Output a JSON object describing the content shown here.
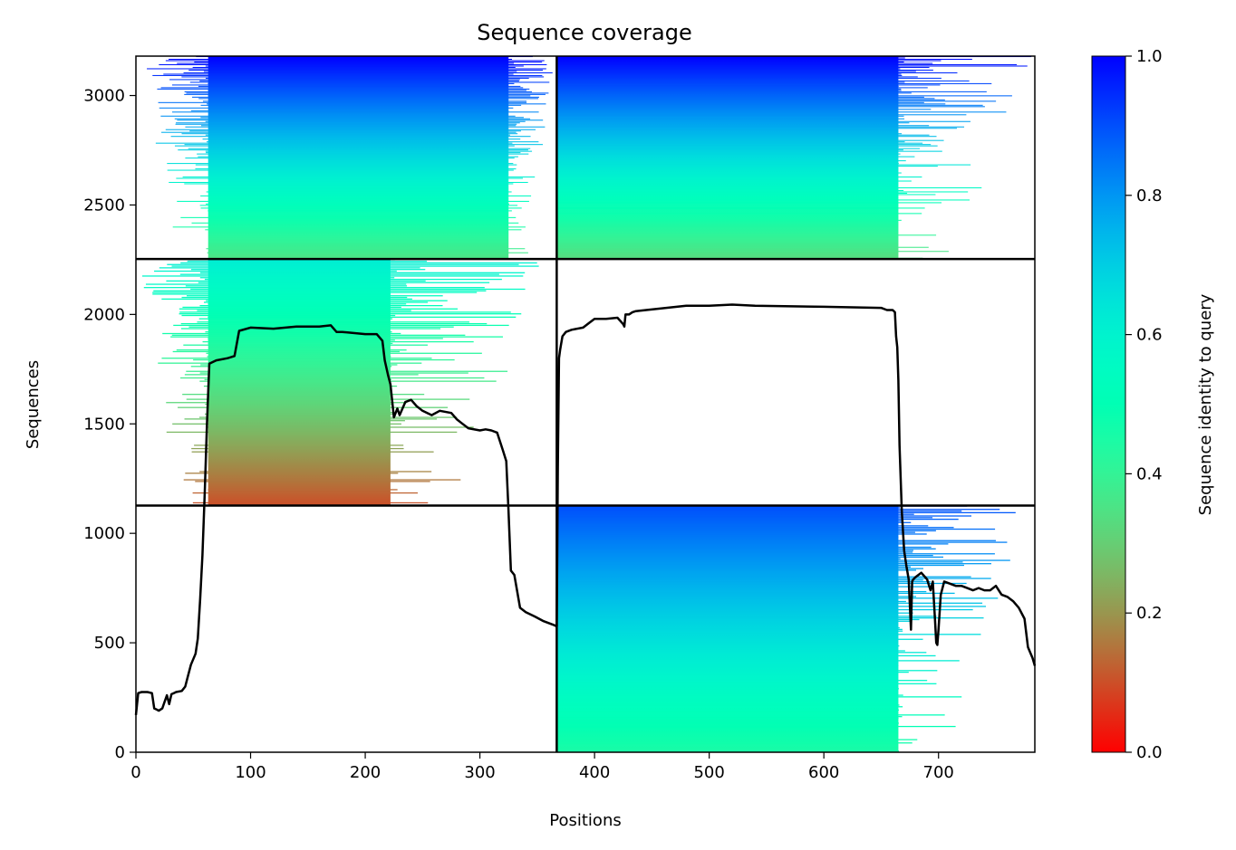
{
  "chart_data": {
    "type": "heatmap",
    "title": "Sequence coverage",
    "xlabel": "Positions",
    "ylabel": "Sequences",
    "xlim": [
      0,
      784
    ],
    "ylim": [
      0,
      3180
    ],
    "x_ticks": [
      0,
      100,
      200,
      300,
      400,
      500,
      600,
      700
    ],
    "y_ticks": [
      0,
      500,
      1000,
      1500,
      2000,
      2500,
      3000
    ],
    "grid": false,
    "colorbar": {
      "label": "Sequence identity to query",
      "colormap": "rainbow_r",
      "range": [
        0,
        1
      ],
      "ticks": [
        0.0,
        0.2,
        0.4,
        0.6,
        0.8,
        1.0
      ],
      "tick_labels": [
        "0.0",
        "0.2",
        "0.4",
        "0.6",
        "0.8",
        "1.0"
      ]
    },
    "chain_boundaries": {
      "positions": [
        367
      ],
      "sequences": [
        1127,
        2253
      ]
    },
    "blocks": [
      {
        "id": "top-left",
        "x_range": [
          0,
          367
        ],
        "y_range": [
          2253,
          3180
        ],
        "identity_top": 1.0,
        "identity_bottom": 0.35,
        "full_start": 63,
        "full_end": 325
      },
      {
        "id": "top-right",
        "x_range": [
          367,
          784
        ],
        "y_range": [
          2253,
          3180
        ],
        "identity_top": 1.0,
        "identity_bottom": 0.33,
        "full_start": 367,
        "full_end": 665
      },
      {
        "id": "middle-left",
        "x_range": [
          0,
          367
        ],
        "y_range": [
          1127,
          2253
        ],
        "identity_top": 0.62,
        "identity_bottom": 0.1,
        "full_start": 63,
        "full_end": 222
      },
      {
        "id": "bottom-right",
        "x_range": [
          367,
          784
        ],
        "y_range": [
          0,
          1127
        ],
        "identity_top": 0.9,
        "identity_bottom": 0.45,
        "full_start": 367,
        "full_end": 665
      }
    ],
    "series": [
      {
        "x": [
          0,
          2,
          5,
          10,
          14,
          16,
          18,
          20,
          23,
          25,
          27,
          29,
          31,
          33,
          35,
          40,
          43,
          45,
          48,
          52,
          54,
          56,
          58,
          60,
          62,
          64,
          70,
          80,
          86,
          90,
          100,
          120,
          140,
          160,
          170,
          175,
          180,
          200,
          210,
          215,
          217,
          220,
          222,
          225,
          228,
          230,
          235,
          240,
          245,
          250,
          258,
          265,
          275,
          280,
          285,
          290,
          300,
          305,
          310,
          315,
          320,
          323,
          325,
          327,
          330,
          335,
          340,
          348,
          355,
          360,
          365,
          367
        ],
        "y": [
          170,
          270,
          275,
          275,
          270,
          200,
          195,
          190,
          200,
          230,
          260,
          220,
          265,
          270,
          275,
          280,
          300,
          340,
          400,
          450,
          520,
          700,
          900,
          1180,
          1500,
          1775,
          1790,
          1800,
          1810,
          1925,
          1940,
          1935,
          1945,
          1945,
          1950,
          1920,
          1920,
          1910,
          1910,
          1880,
          1790,
          1720,
          1680,
          1530,
          1570,
          1540,
          1600,
          1610,
          1580,
          1560,
          1540,
          1560,
          1550,
          1520,
          1500,
          1480,
          1470,
          1475,
          1470,
          1460,
          1380,
          1330,
          1100,
          830,
          810,
          660,
          640,
          620,
          600,
          590,
          580,
          575
        ]
      },
      {
        "x": [
          367,
          368,
          369,
          370,
          372,
          375,
          380,
          390,
          395,
          400,
          410,
          420,
          425,
          426,
          427,
          430,
          433,
          436,
          445,
          480,
          500,
          520,
          540,
          600,
          650,
          655,
          660,
          662,
          663,
          664,
          665,
          666,
          668,
          670,
          672,
          674,
          676,
          677,
          678,
          680,
          685,
          690,
          693,
          695,
          697,
          698,
          699,
          700,
          702,
          705,
          710,
          715,
          720,
          725,
          730,
          735,
          740,
          745,
          750,
          755,
          760,
          765,
          770,
          775,
          778,
          782,
          784
        ],
        "y": [
          575,
          1300,
          1800,
          1840,
          1900,
          1920,
          1930,
          1940,
          1960,
          1980,
          1980,
          1985,
          1955,
          1945,
          2000,
          2000,
          2010,
          2015,
          2020,
          2040,
          2040,
          2045,
          2040,
          2035,
          2030,
          2020,
          2020,
          2010,
          1900,
          1850,
          1700,
          1400,
          1100,
          920,
          850,
          790,
          560,
          780,
          790,
          800,
          820,
          790,
          740,
          780,
          600,
          500,
          490,
          560,
          720,
          780,
          770,
          760,
          760,
          750,
          740,
          750,
          740,
          740,
          760,
          720,
          710,
          690,
          660,
          610,
          480,
          430,
          395
        ]
      }
    ]
  }
}
